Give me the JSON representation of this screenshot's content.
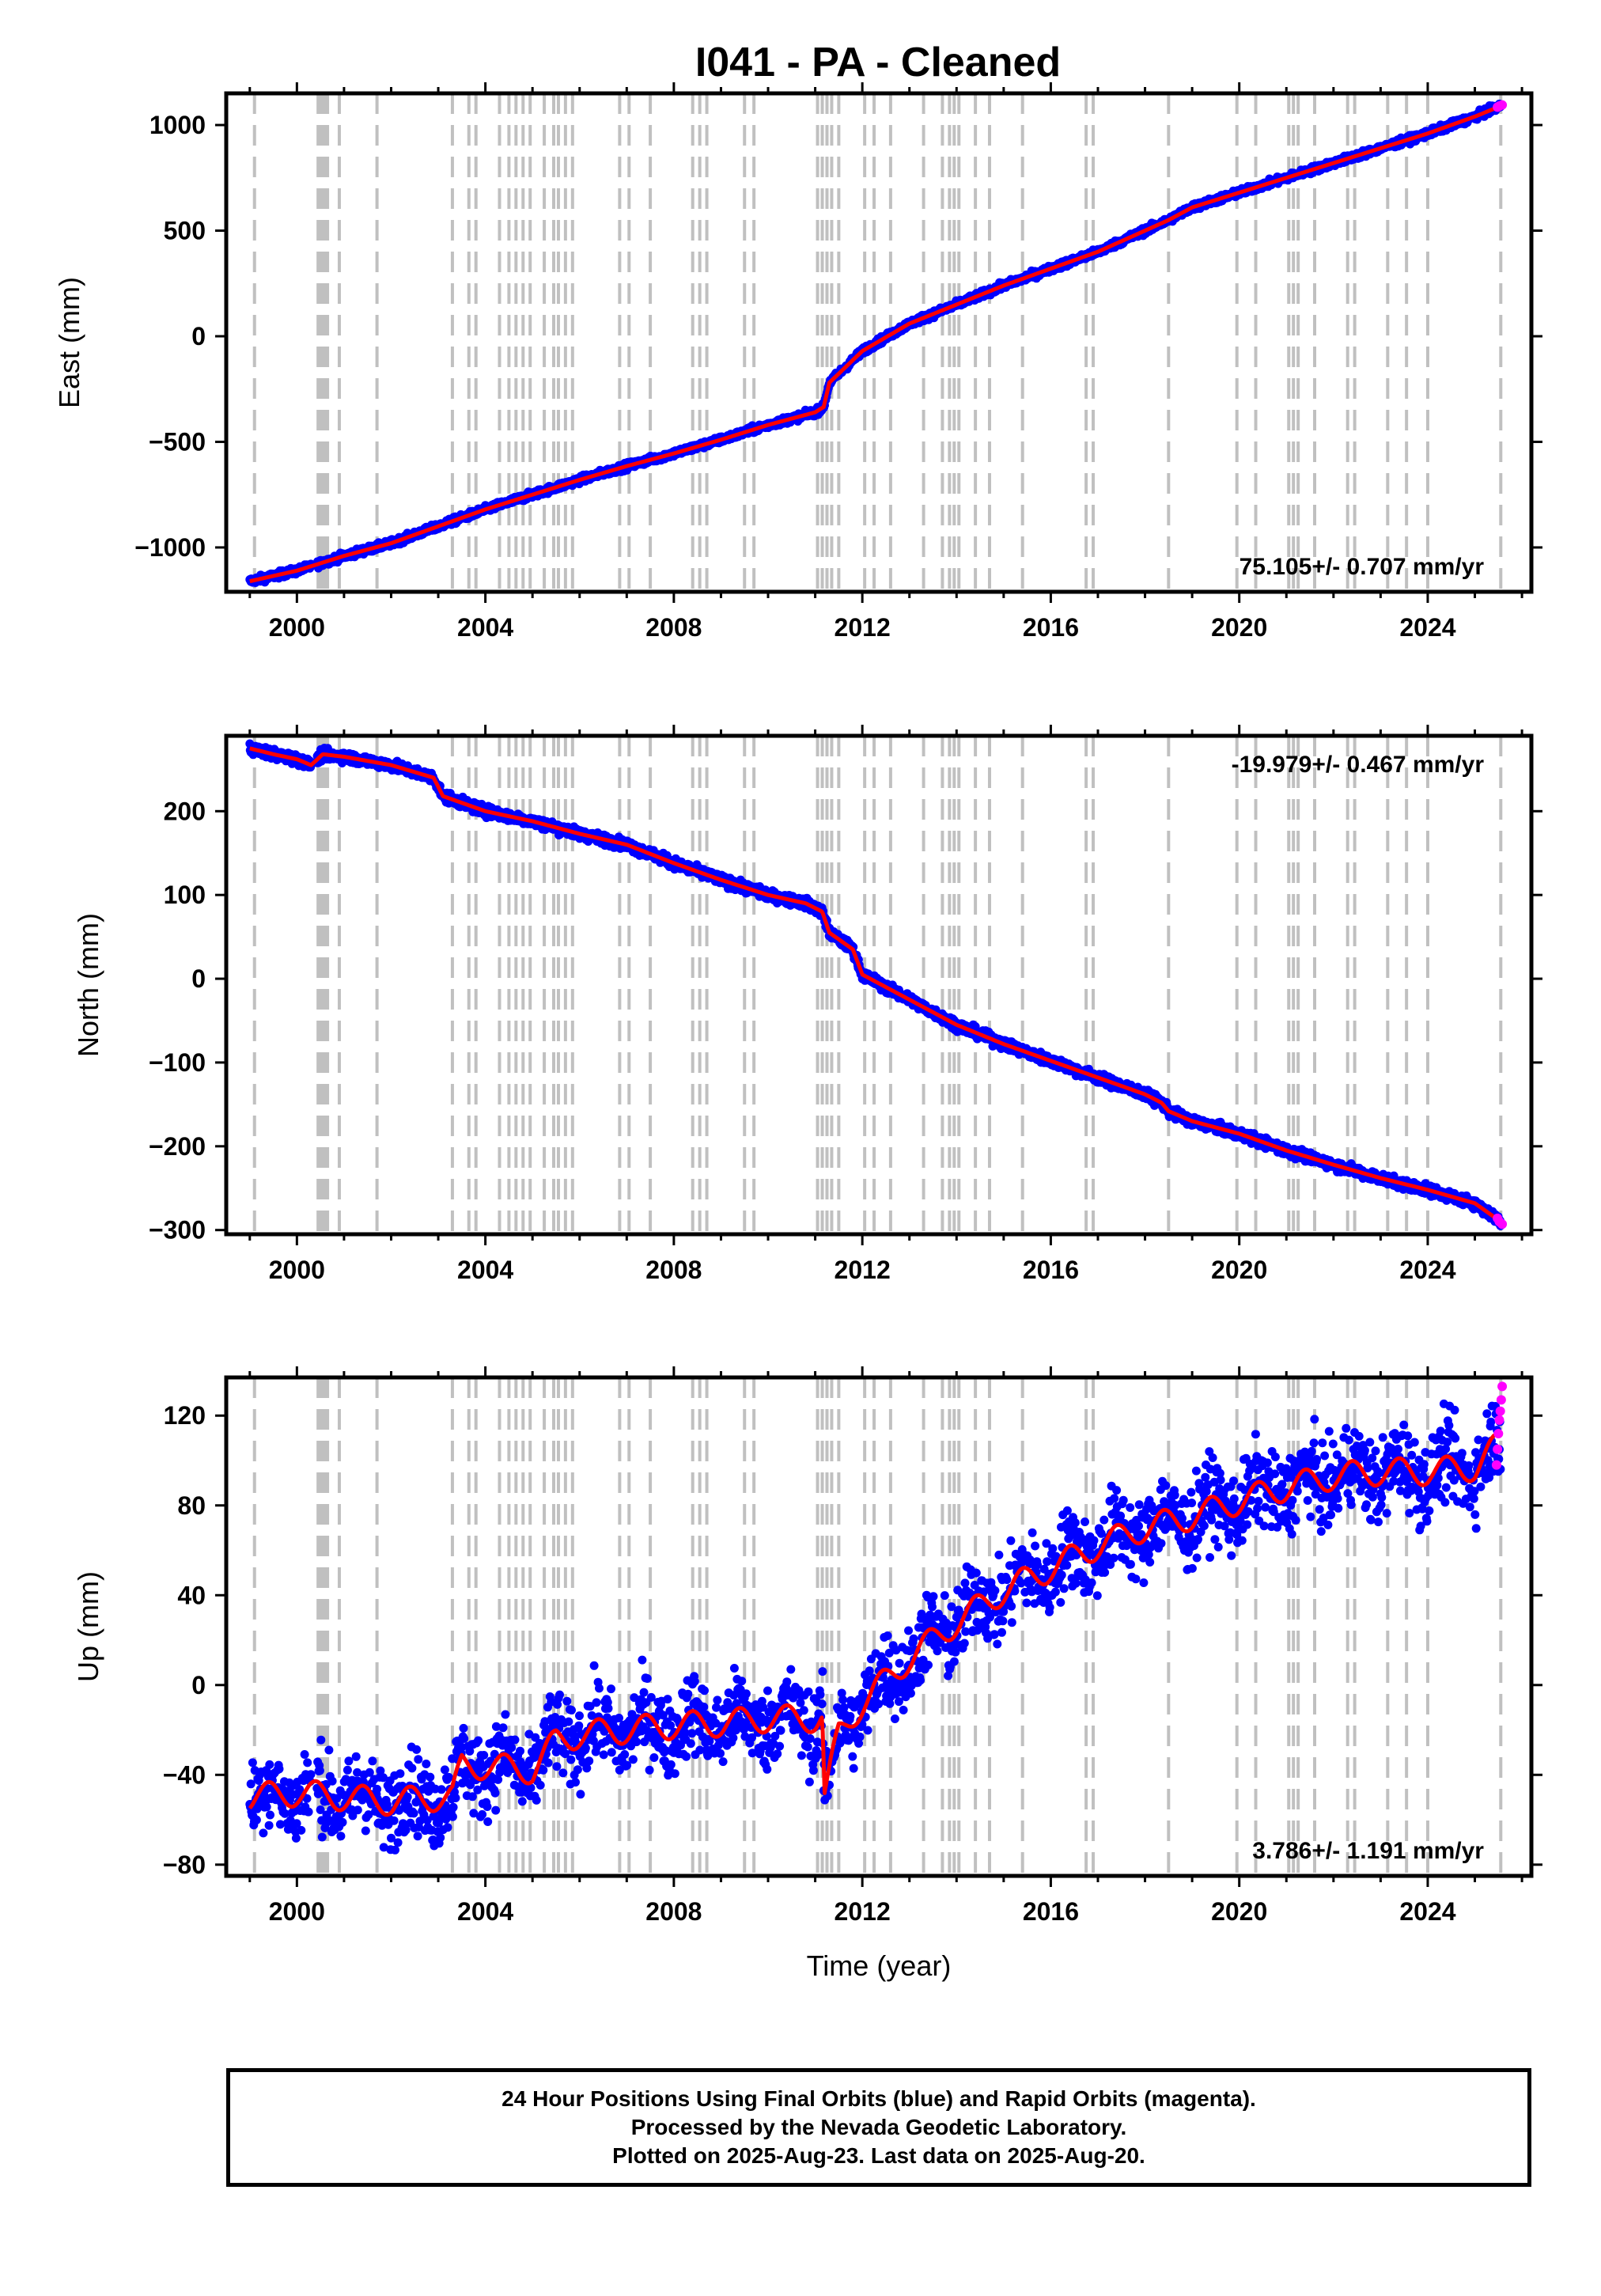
{
  "title": "I041  - PA - Cleaned",
  "footer": {
    "lines": [
      "24 Hour Positions Using Final Orbits (blue) and Rapid Orbits (magenta).",
      "Processed by the Nevada Geodetic Laboratory.",
      "Plotted on 2025-Aug-23. Last data on 2025-Aug-20."
    ]
  },
  "colors": {
    "final_orbits": "#0000ff",
    "rapid_orbits": "#ff00ff",
    "model_fit": "#ff0000",
    "event_lines": "#c0c0c0",
    "frame": "#000000"
  },
  "chart_data": [
    {
      "type": "scatter",
      "panel": "east",
      "ylabel": "East (mm)",
      "xlabel": "",
      "xlim": [
        1998.5,
        2026.2
      ],
      "ylim": [
        -1210,
        1150
      ],
      "xticks": [
        2000,
        2004,
        2008,
        2012,
        2016,
        2020,
        2024
      ],
      "yticks": [
        1000,
        500,
        0,
        -500,
        -1000
      ],
      "ytick_labels": [
        "1000",
        "500",
        "0",
        "−500",
        "−1000"
      ],
      "rate_label": "75.105+/- 0.707 mm/yr",
      "rate_position": "bottom-right",
      "series": [
        {
          "name": "Final Orbits",
          "color": "#0000ff",
          "x": [
            1999.0,
            2000.0,
            2001.0,
            2002.0,
            2003.0,
            2004.0,
            2005.0,
            2006.0,
            2007.0,
            2008.0,
            2009.0,
            2010.0,
            2011.0,
            2011.18,
            2011.3,
            2012.0,
            2013.0,
            2014.0,
            2015.0,
            2016.0,
            2017.0,
            2018.0,
            2018.5,
            2019.0,
            2020.0,
            2021.0,
            2022.0,
            2023.0,
            2024.0,
            2025.0,
            2025.55
          ],
          "y": [
            -1160,
            -1110,
            -1040,
            -980,
            -900,
            -820,
            -750,
            -680,
            -615,
            -555,
            -490,
            -420,
            -360,
            -335,
            -220,
            -70,
            60,
            150,
            240,
            320,
            400,
            500,
            550,
            610,
            680,
            750,
            820,
            890,
            960,
            1040,
            1090
          ],
          "jitter": 8
        },
        {
          "name": "Rapid Orbits",
          "color": "#ff00ff",
          "x": [
            2025.48,
            2025.52,
            2025.58
          ],
          "y": [
            1085,
            1090,
            1095
          ]
        },
        {
          "name": "Model",
          "color": "#ff0000",
          "x": [
            1999.0,
            2000.0,
            2001.0,
            2002.0,
            2003.0,
            2004.0,
            2005.0,
            2006.0,
            2007.0,
            2008.0,
            2009.0,
            2010.0,
            2011.0,
            2011.18,
            2011.3,
            2012.0,
            2013.0,
            2014.0,
            2015.0,
            2016.0,
            2017.0,
            2018.0,
            2018.5,
            2019.0,
            2020.0,
            2021.0,
            2022.0,
            2023.0,
            2024.0,
            2025.0,
            2025.55
          ],
          "y": [
            -1160,
            -1110,
            -1040,
            -980,
            -900,
            -820,
            -750,
            -680,
            -615,
            -555,
            -490,
            -420,
            -360,
            -335,
            -220,
            -70,
            60,
            150,
            240,
            320,
            400,
            500,
            550,
            610,
            680,
            750,
            820,
            890,
            960,
            1040,
            1090
          ]
        }
      ]
    },
    {
      "type": "scatter",
      "panel": "north",
      "ylabel": "North (mm)",
      "xlabel": "",
      "xlim": [
        1998.5,
        2026.2
      ],
      "ylim": [
        -305,
        290
      ],
      "xticks": [
        2000,
        2004,
        2008,
        2012,
        2016,
        2020,
        2024
      ],
      "yticks": [
        200,
        100,
        0,
        -100,
        -200,
        -300
      ],
      "ytick_labels": [
        "200",
        "100",
        "0",
        "−100",
        "−200",
        "−300"
      ],
      "rate_label": "-19.979+/- 0.467 mm/yr",
      "rate_position": "top-right",
      "series": [
        {
          "name": "Final Orbits",
          "color": "#0000ff",
          "x": [
            1999.0,
            1999.5,
            2000.0,
            2000.3,
            2000.55,
            2001.0,
            2002.0,
            2002.9,
            2003.1,
            2004.0,
            2005.0,
            2006.0,
            2007.0,
            2008.0,
            2009.0,
            2010.0,
            2010.8,
            2011.15,
            2011.3,
            2011.8,
            2012.0,
            2013.0,
            2014.0,
            2015.0,
            2016.0,
            2017.0,
            2018.0,
            2018.35,
            2018.5,
            2019.0,
            2020.0,
            2021.0,
            2022.0,
            2023.0,
            2024.0,
            2025.0,
            2025.55
          ],
          "y": [
            275,
            268,
            262,
            255,
            268,
            265,
            255,
            240,
            218,
            200,
            188,
            173,
            160,
            138,
            118,
            100,
            90,
            80,
            55,
            35,
            5,
            -25,
            -55,
            -78,
            -98,
            -118,
            -138,
            -148,
            -158,
            -170,
            -185,
            -205,
            -222,
            -238,
            -252,
            -268,
            -290
          ],
          "jitter": 3
        },
        {
          "name": "Rapid Orbits",
          "color": "#ff00ff",
          "x": [
            2025.48,
            2025.52,
            2025.58
          ],
          "y": [
            -286,
            -290,
            -293
          ]
        },
        {
          "name": "Model",
          "color": "#ff0000",
          "x": [
            1999.0,
            1999.5,
            2000.0,
            2000.3,
            2000.55,
            2001.0,
            2002.0,
            2002.9,
            2003.1,
            2004.0,
            2005.0,
            2006.0,
            2007.0,
            2008.0,
            2009.0,
            2010.0,
            2010.8,
            2011.15,
            2011.3,
            2011.8,
            2012.0,
            2013.0,
            2014.0,
            2015.0,
            2016.0,
            2017.0,
            2018.0,
            2018.35,
            2018.5,
            2019.0,
            2020.0,
            2021.0,
            2022.0,
            2023.0,
            2024.0,
            2025.0,
            2025.55
          ],
          "y": [
            275,
            268,
            262,
            255,
            268,
            265,
            255,
            240,
            218,
            200,
            188,
            173,
            160,
            138,
            118,
            100,
            90,
            80,
            55,
            35,
            5,
            -25,
            -55,
            -78,
            -98,
            -118,
            -138,
            -148,
            -158,
            -170,
            -185,
            -205,
            -222,
            -238,
            -252,
            -268,
            -290
          ]
        }
      ]
    },
    {
      "type": "scatter",
      "panel": "up",
      "ylabel": "Up (mm)",
      "xlabel": "Time (year)",
      "xlim": [
        1998.5,
        2026.2
      ],
      "ylim": [
        -85,
        137
      ],
      "xticks": [
        2000,
        2004,
        2008,
        2012,
        2016,
        2020,
        2024
      ],
      "yticks": [
        120,
        80,
        40,
        0,
        -40,
        -80
      ],
      "ytick_labels": [
        "120",
        "80",
        "40",
        "0",
        "−40",
        "−80"
      ],
      "rate_label": "3.786+/- 1.191 mm/yr",
      "rate_position": "bottom-right",
      "series": [
        {
          "name": "Final Orbits",
          "color": "#0000ff",
          "x": [
            1999.0,
            2000.0,
            2001.0,
            2002.0,
            2003.0,
            2003.3,
            2003.5,
            2004.0,
            2005.0,
            2005.5,
            2006.0,
            2007.0,
            2008.0,
            2009.0,
            2010.0,
            2011.0,
            2011.15,
            2011.2,
            2011.5,
            2012.0,
            2013.0,
            2014.0,
            2015.0,
            2016.0,
            2017.0,
            2018.0,
            2019.0,
            2020.0,
            2021.0,
            2022.0,
            2023.0,
            2024.0,
            2025.0,
            2025.55
          ],
          "y": [
            -50,
            -48,
            -50,
            -52,
            -50,
            -50,
            -36,
            -36,
            -38,
            -25,
            -22,
            -20,
            -18,
            -17,
            -15,
            -15,
            -14,
            -50,
            -22,
            -8,
            12,
            28,
            42,
            52,
            62,
            70,
            75,
            82,
            88,
            93,
            95,
            95,
            97,
            108
          ],
          "jitter": 9,
          "seasonal_amplitude": 6
        },
        {
          "name": "Rapid Orbits",
          "color": "#ff00ff",
          "x": [
            2025.46,
            2025.48,
            2025.5,
            2025.52,
            2025.54,
            2025.56,
            2025.58
          ],
          "y": [
            98,
            105,
            112,
            118,
            122,
            127,
            133
          ]
        },
        {
          "name": "Model",
          "color": "#ff0000",
          "x": [
            1999.0,
            2000.0,
            2001.0,
            2002.0,
            2003.0,
            2003.3,
            2003.5,
            2004.0,
            2005.0,
            2005.5,
            2006.0,
            2007.0,
            2008.0,
            2009.0,
            2010.0,
            2011.0,
            2011.15,
            2011.2,
            2011.5,
            2012.0,
            2013.0,
            2014.0,
            2015.0,
            2016.0,
            2017.0,
            2018.0,
            2019.0,
            2020.0,
            2021.0,
            2022.0,
            2023.0,
            2024.0,
            2025.0,
            2025.55
          ],
          "y": [
            -50,
            -48,
            -50,
            -52,
            -50,
            -50,
            -36,
            -36,
            -38,
            -25,
            -22,
            -20,
            -18,
            -17,
            -15,
            -15,
            -14,
            -50,
            -22,
            -8,
            12,
            28,
            42,
            52,
            62,
            70,
            75,
            82,
            88,
            93,
            95,
            95,
            97,
            108
          ],
          "seasonal_amplitude": 6
        }
      ]
    }
  ],
  "event_lines": [
    1999.1,
    2000.45,
    2000.5,
    2000.55,
    2000.6,
    2000.65,
    2000.9,
    2001.7,
    2003.3,
    2003.65,
    2003.8,
    2004.3,
    2004.5,
    2004.65,
    2004.8,
    2004.95,
    2005.25,
    2005.45,
    2005.55,
    2005.7,
    2005.85,
    2006.85,
    2007.05,
    2007.5,
    2008.4,
    2008.55,
    2008.7,
    2009.5,
    2009.7,
    2011.05,
    2011.15,
    2011.25,
    2011.35,
    2011.5,
    2012.05,
    2012.25,
    2012.6,
    2013.3,
    2013.7,
    2013.85,
    2013.95,
    2014.05,
    2014.4,
    2014.7,
    2015.4,
    2016.75,
    2016.9,
    2018.5,
    2019.95,
    2020.35,
    2021.05,
    2021.15,
    2021.25,
    2021.6,
    2022.3,
    2022.45,
    2023.15,
    2023.55,
    2024.0,
    2025.55
  ]
}
